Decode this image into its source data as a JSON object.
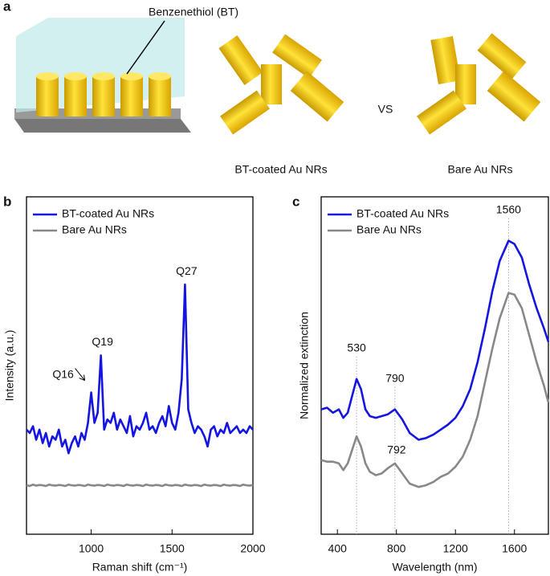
{
  "panel_a": {
    "label": "a",
    "annotation": "Benzenethiol (BT)",
    "left_caption": "BT-coated Au NRs",
    "vs": "VS",
    "right_caption": "Bare Au NRs"
  },
  "chart_data": [
    {
      "type": "line",
      "panel_label": "b",
      "x_label": "Raman shift (cm⁻¹)",
      "y_label": "Intensity (a.u.)",
      "xlim": [
        600,
        2000
      ],
      "xticks": [
        1000,
        1500,
        2000
      ],
      "ylim": [
        0,
        100
      ],
      "legend": "upper left",
      "x": [
        600,
        620,
        640,
        660,
        680,
        700,
        720,
        740,
        760,
        780,
        800,
        820,
        840,
        860,
        880,
        900,
        920,
        940,
        960,
        980,
        1000,
        1020,
        1040,
        1060,
        1080,
        1100,
        1120,
        1140,
        1160,
        1180,
        1200,
        1220,
        1240,
        1260,
        1280,
        1300,
        1320,
        1340,
        1360,
        1380,
        1400,
        1420,
        1440,
        1460,
        1480,
        1500,
        1520,
        1540,
        1560,
        1580,
        1600,
        1620,
        1640,
        1660,
        1680,
        1700,
        1720,
        1740,
        1760,
        1780,
        1800,
        1820,
        1840,
        1860,
        1880,
        1900,
        1920,
        1940,
        1960,
        1980,
        2000
      ],
      "series": [
        {
          "name": "BT-coated Au NRs",
          "color": "#1515e0",
          "values": [
            31,
            30,
            32,
            28,
            31,
            27,
            30,
            26,
            29,
            28,
            31,
            26,
            28,
            24,
            27,
            29,
            26,
            30,
            28,
            33,
            42,
            33,
            36,
            53,
            31,
            34,
            33,
            36,
            31,
            34,
            32,
            30,
            35,
            29,
            32,
            31,
            33,
            36,
            31,
            32,
            30,
            33,
            35,
            32,
            38,
            33,
            31,
            36,
            46,
            74,
            37,
            33,
            30,
            32,
            31,
            29,
            26,
            31,
            32,
            29,
            31,
            30,
            33,
            30,
            31,
            32,
            30,
            31,
            30,
            32,
            31
          ]
        },
        {
          "name": "Bare Au NRs",
          "color": "#888888",
          "values": [
            14.5,
            14.3,
            14.7,
            14.4,
            14.6,
            14.5,
            14.3,
            14.7,
            14.5,
            14.4,
            14.6,
            14.5,
            14.3,
            14.7,
            14.5,
            14.4,
            14.6,
            14.5,
            14.3,
            14.7,
            14.5,
            14.4,
            14.6,
            14.5,
            14.3,
            14.7,
            14.5,
            14.4,
            14.6,
            14.5,
            14.3,
            14.7,
            14.5,
            14.4,
            14.6,
            14.5,
            14.3,
            14.7,
            14.5,
            14.4,
            14.6,
            14.5,
            14.3,
            14.7,
            14.5,
            14.4,
            14.6,
            14.5,
            14.3,
            14.7,
            14.5,
            14.4,
            14.6,
            14.5,
            14.3,
            14.7,
            14.5,
            14.4,
            14.6,
            14.5,
            14.3,
            14.7,
            14.5,
            14.4,
            14.6,
            14.5,
            14.3,
            14.7,
            14.5,
            14.4,
            14.6
          ]
        }
      ],
      "annotations": [
        {
          "label": "Q16",
          "x": 1000,
          "series": 0,
          "arrow": true
        },
        {
          "label": "Q19",
          "x": 1060,
          "series": 0
        },
        {
          "label": "Q27",
          "x": 1580,
          "series": 0
        }
      ]
    },
    {
      "type": "line",
      "panel_label": "c",
      "x_label": "Wavelength (nm)",
      "y_label": "Normalized extinction",
      "xlim": [
        290,
        1830
      ],
      "xticks": [
        400,
        800,
        1200,
        1600
      ],
      "ylim": [
        0,
        100
      ],
      "legend": "upper left",
      "x": [
        290,
        330,
        370,
        410,
        440,
        470,
        500,
        530,
        560,
        590,
        620,
        660,
        700,
        740,
        790,
        840,
        890,
        950,
        1000,
        1050,
        1100,
        1150,
        1200,
        1250,
        1300,
        1350,
        1400,
        1450,
        1500,
        1560,
        1600,
        1650,
        1700,
        1750,
        1800,
        1830
      ],
      "series": [
        {
          "name": "BT-coated Au NRs",
          "color": "#1515e0",
          "values": [
            37,
            37.5,
            36,
            37,
            34.5,
            36,
            41,
            46,
            43,
            37,
            35,
            34.5,
            35,
            35.5,
            37,
            34,
            30,
            28,
            28.5,
            29.5,
            31,
            32.5,
            34.5,
            38,
            43,
            51,
            61,
            72,
            81,
            87,
            86,
            82,
            74,
            67,
            61,
            57
          ]
        },
        {
          "name": "Bare Au NRs",
          "color": "#888888",
          "values": [
            22,
            21.5,
            21.5,
            21,
            19,
            21,
            25,
            29,
            26,
            21,
            18.5,
            17.5,
            18,
            19.5,
            21,
            18,
            15,
            14,
            14.5,
            15.5,
            17,
            18,
            20,
            23,
            28,
            35,
            45,
            55,
            64,
            71.5,
            71,
            67,
            59,
            51,
            44,
            39
          ]
        }
      ],
      "annotations": [
        {
          "label": "530",
          "x": 530,
          "series": 0,
          "guide": true
        },
        {
          "label": "790",
          "x": 790,
          "series": 0,
          "guide": true
        },
        {
          "label": "792",
          "x": 790,
          "series": 1
        },
        {
          "label": "1560",
          "x": 1560,
          "series": 0,
          "guide": true
        }
      ]
    }
  ]
}
